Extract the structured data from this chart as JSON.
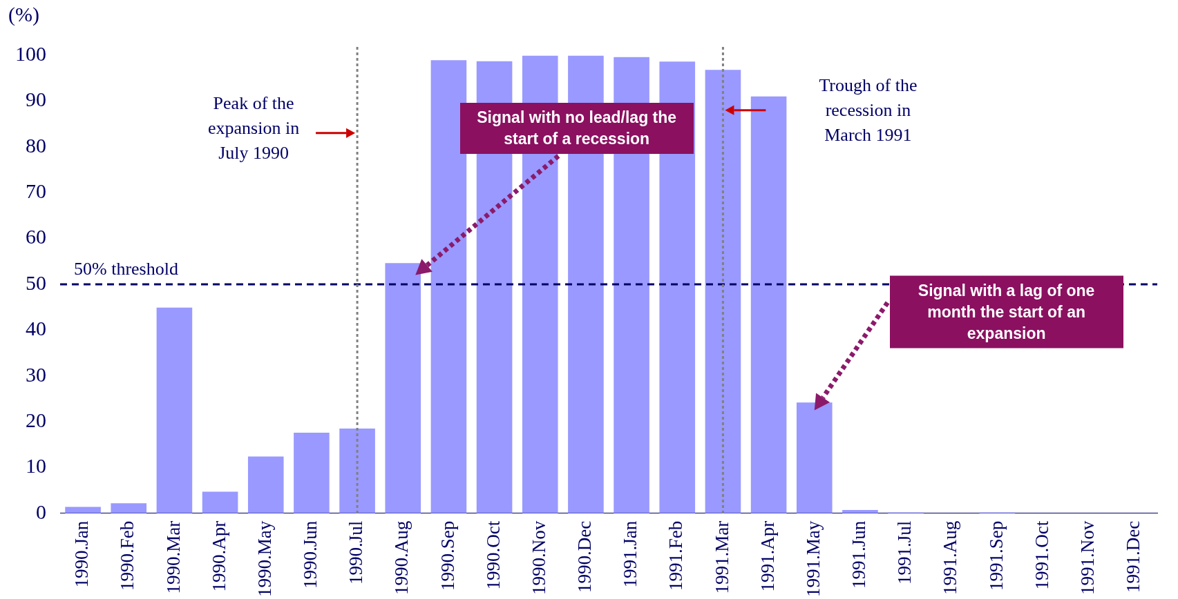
{
  "chart_data": {
    "type": "bar",
    "ylabel": "(%)",
    "categories": [
      "1990.Jan",
      "1990.Feb",
      "1990.Mar",
      "1990.Apr",
      "1990.May",
      "1990.Jun",
      "1990.Jul",
      "1990.Aug",
      "1990.Sep",
      "1990.Oct",
      "1990.Nov",
      "1990.Dec",
      "1991.Jan",
      "1991.Feb",
      "1991.Mar",
      "1991.Apr",
      "1991.May",
      "1991.Jun",
      "1991.Jul",
      "1991.Aug",
      "1991.Sep",
      "1991.Oct",
      "1991.Nov",
      "1991.Dec"
    ],
    "values": [
      1.4,
      2.2,
      44.9,
      4.7,
      12.4,
      17.6,
      18.5,
      54.6,
      98.9,
      98.7,
      99.9,
      99.9,
      99.6,
      98.6,
      96.8,
      91.0,
      24.2,
      0.7,
      0.2,
      0,
      0.2,
      0,
      0,
      0
    ],
    "color": "#9999ff",
    "ylim": [
      0,
      100
    ],
    "yticks": [
      0,
      10,
      20,
      30,
      40,
      50,
      60,
      70,
      80,
      90,
      100
    ],
    "grid": false,
    "legend": false,
    "ref_lines": [
      {
        "axis": "y",
        "value": 50,
        "label": "50% threshold",
        "color": "#000066",
        "line_style": "dashed"
      },
      {
        "axis": "x",
        "value": "1990.Jul",
        "color": "#808080",
        "line_style": "dotted"
      },
      {
        "axis": "x",
        "value": "1991.Mar",
        "color": "#808080",
        "line_style": "dotted"
      }
    ],
    "annotations": [
      "Peak of the expansion in July 1990",
      "Trough of the recession in March 1991",
      "Signal with no lead/lag the start of a recession",
      "Signal with a lag of one month the start of an expansion"
    ]
  }
}
